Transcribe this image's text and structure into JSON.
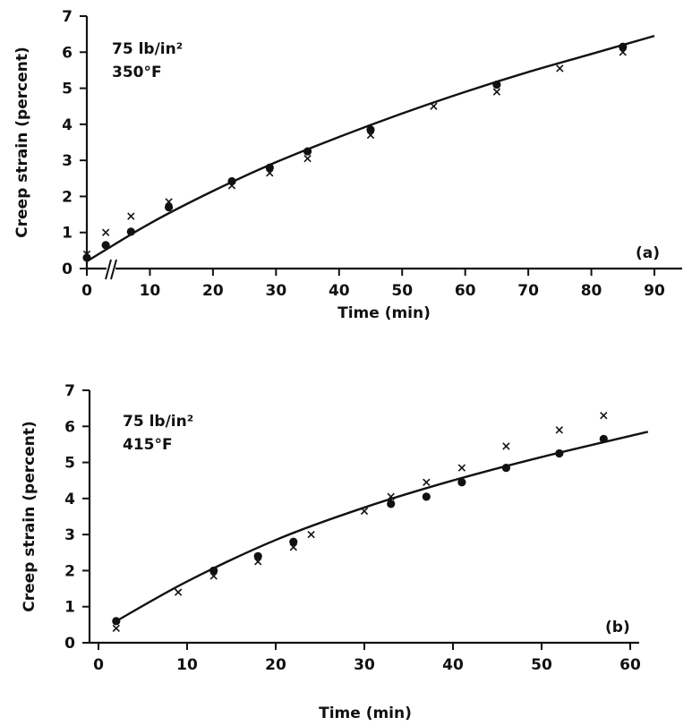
{
  "chart_data": [
    {
      "type": "scatter",
      "panel_label": "(a)",
      "annotation_lines": [
        "75 lb/in²",
        "350°F"
      ],
      "xlabel": "Time (min)",
      "ylabel": "Creep strain (percent)",
      "xlim": [
        0,
        90
      ],
      "ylim": [
        0,
        7
      ],
      "x_ticks": [
        0,
        10,
        20,
        30,
        40,
        50,
        60,
        70,
        80,
        90
      ],
      "y_ticks": [
        0,
        1,
        2,
        3,
        4,
        5,
        6,
        7
      ],
      "axis_break": true,
      "grid": false,
      "series": [
        {
          "marker": "dot",
          "x": [
            0,
            3,
            7,
            13,
            23,
            29,
            35,
            45,
            65,
            85
          ],
          "y": [
            0.3,
            0.65,
            1.02,
            1.7,
            2.42,
            2.8,
            3.25,
            3.85,
            5.1,
            6.15
          ]
        },
        {
          "marker": "cross",
          "x": [
            0,
            3,
            7,
            13,
            23,
            29,
            35,
            45,
            55,
            65,
            75,
            85
          ],
          "y": [
            0.4,
            1.0,
            1.45,
            1.85,
            2.3,
            2.65,
            3.05,
            3.7,
            4.5,
            4.9,
            5.55,
            6.0
          ]
        },
        {
          "marker": "line",
          "x": [
            0,
            10,
            20,
            30,
            40,
            50,
            60,
            70,
            80,
            90
          ],
          "y": [
            0.2,
            1.25,
            2.15,
            2.95,
            3.65,
            4.3,
            4.9,
            5.45,
            5.95,
            6.45
          ]
        }
      ]
    },
    {
      "type": "scatter",
      "panel_label": "(b)",
      "annotation_lines": [
        "75 lb/in²",
        "415°F"
      ],
      "xlabel": "Time (min)",
      "ylabel": "Creep strain (percent)",
      "xlim": [
        0,
        60
      ],
      "ylim": [
        0,
        7
      ],
      "x_ticks": [
        0,
        10,
        20,
        30,
        40,
        50,
        60
      ],
      "y_ticks": [
        0,
        1,
        2,
        3,
        4,
        5,
        6,
        7
      ],
      "grid": false,
      "series": [
        {
          "marker": "dot",
          "x": [
            2,
            13,
            18,
            22,
            33,
            37,
            41,
            46,
            52,
            57
          ],
          "y": [
            0.6,
            2.0,
            2.4,
            2.8,
            3.85,
            4.05,
            4.45,
            4.85,
            5.25,
            5.65
          ]
        },
        {
          "marker": "cross",
          "x": [
            2,
            9,
            13,
            18,
            22,
            24,
            30,
            33,
            37,
            41,
            46,
            52,
            57
          ],
          "y": [
            0.4,
            1.4,
            1.85,
            2.25,
            2.65,
            3.0,
            3.65,
            4.05,
            4.45,
            4.85,
            5.45,
            5.9,
            6.3
          ]
        },
        {
          "marker": "line",
          "x": [
            2,
            10,
            20,
            30,
            40,
            50,
            62
          ],
          "y": [
            0.6,
            1.7,
            2.85,
            3.75,
            4.5,
            5.15,
            5.85
          ]
        }
      ]
    }
  ]
}
